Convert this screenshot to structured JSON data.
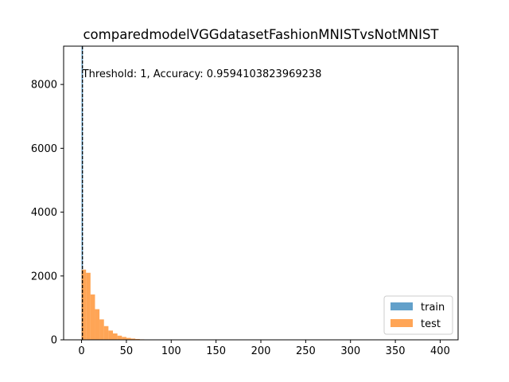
{
  "chart_data": {
    "type": "histogram",
    "title": "comparedmodelVGGdatasetFashionMNISTvsNotMNIST",
    "xlabel": "",
    "ylabel": "",
    "xlim": [
      -20,
      420
    ],
    "ylim": [
      0,
      9200
    ],
    "x_ticks": [
      0,
      50,
      100,
      150,
      200,
      250,
      300,
      350,
      400
    ],
    "y_ticks": [
      0,
      2000,
      4000,
      6000,
      8000
    ],
    "series": [
      {
        "name": "train",
        "color": "#1f77b4",
        "opacity": 0.7,
        "bins": [
          [
            0,
            1.5,
            9200
          ]
        ]
      },
      {
        "name": "test",
        "color": "#ff7f0e",
        "opacity": 0.7,
        "bins": [
          [
            0,
            5,
            2200
          ],
          [
            5,
            10,
            2100
          ],
          [
            10,
            15,
            1420
          ],
          [
            15,
            20,
            960
          ],
          [
            20,
            25,
            640
          ],
          [
            25,
            30,
            430
          ],
          [
            30,
            35,
            290
          ],
          [
            35,
            40,
            200
          ],
          [
            40,
            45,
            130
          ],
          [
            45,
            50,
            90
          ],
          [
            50,
            55,
            60
          ],
          [
            55,
            60,
            40
          ],
          [
            60,
            65,
            25
          ],
          [
            65,
            70,
            15
          ],
          [
            70,
            75,
            8
          ],
          [
            75,
            80,
            5
          ]
        ]
      }
    ],
    "threshold": {
      "x": 1,
      "color": "#000000",
      "style": "dashed"
    },
    "annotation": {
      "text": "Threshold: 1, Accuracy: 0.9594103823969238",
      "x": 1,
      "y": 8350
    },
    "legend": {
      "placement": "lower right",
      "entries": [
        "train",
        "test"
      ]
    },
    "grid": false
  }
}
